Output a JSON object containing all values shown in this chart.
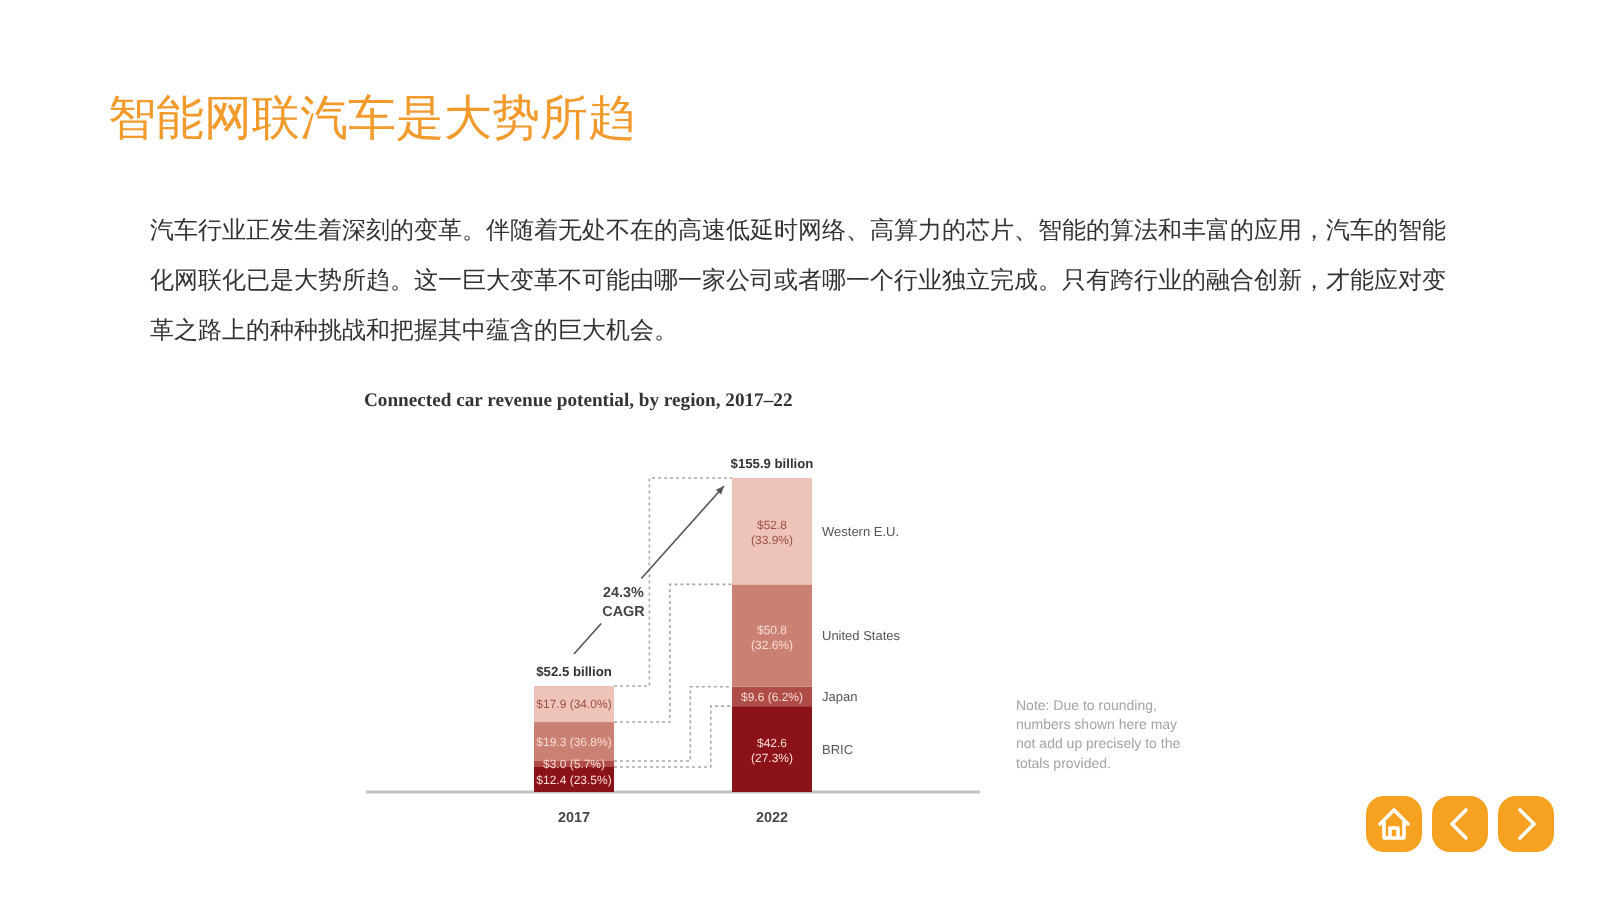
{
  "chart_data": {
    "type": "bar",
    "stacked": true,
    "title": "智能网联汽车是大势所趋",
    "subtitle": "汽车行业正发生着深刻的变革。伴随着无处不在的高速低延时网络、高算力的芯片、智能的算法和丰富的应用，汽车的智能化网联化已是大势所趋。这一巨大变革不可能由哪一家公司或者哪一个行业独立完成。只有跨行业的融合创新，才能应对变革之路上的种种挑战和把握其中蕴含的巨大机会。",
    "categories": [
      "2017",
      "2022"
    ],
    "series": [
      {
        "name": "BRIC",
        "color": "#8c1219",
        "values": [
          12.4,
          42.6
        ],
        "value_labels": [
          "$12.4 (23.5%)",
          "$42.6 (27.3%)"
        ]
      },
      {
        "name": "Japan",
        "color": "#b04c47",
        "values": [
          3.0,
          9.6
        ],
        "value_labels": [
          "$3.0 (5.7%)",
          "$9.6 (6.2%)"
        ]
      },
      {
        "name": "United States",
        "color": "#cb8074",
        "values": [
          19.3,
          50.8
        ],
        "value_labels": [
          "$19.3 (36.8%)",
          "$50.8 (32.6%)"
        ]
      },
      {
        "name": "Western E.U.",
        "color": "#eec3b8",
        "values": [
          17.9,
          52.8
        ],
        "value_labels": [
          "$17.9 (34.0%)",
          "$52.8 (33.9%)"
        ]
      }
    ],
    "totals": [
      "$52.5 billion",
      "$155.9 billion"
    ],
    "annotations": [
      "Connected car revenue potential, by region, 2017–22",
      "24.3% CAGR",
      "Note: Due to rounding, numbers shown here may not add up precisely to the totals provided."
    ],
    "tick_labels": "x"
  }
}
